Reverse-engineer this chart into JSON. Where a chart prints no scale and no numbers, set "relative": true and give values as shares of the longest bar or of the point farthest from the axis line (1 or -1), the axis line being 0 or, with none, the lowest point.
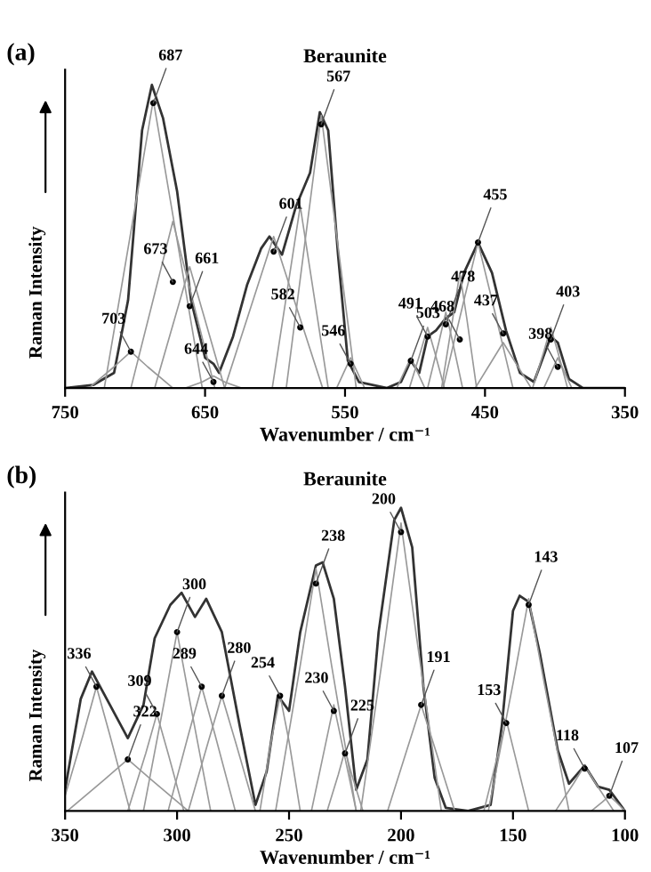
{
  "chart_data": [
    {
      "type": "line",
      "title": "Beraunite",
      "xlabel": "Wavenumber / cm⁻¹",
      "ylabel": "Raman Intensity",
      "relative": true,
      "xlim": [
        750,
        350
      ],
      "xticks": [
        750,
        650,
        550,
        450,
        350
      ],
      "tick_labels": "x",
      "grid": false,
      "legend": false,
      "marker": "none",
      "line_style": "solid",
      "annotations": [
        "(a)",
        {
          "text": "703",
          "x": 703,
          "y": 0.12
        },
        {
          "text": "687",
          "x": 687,
          "y": 0.94
        },
        {
          "text": "673",
          "x": 673,
          "y": 0.35
        },
        {
          "text": "661",
          "x": 661,
          "y": 0.27
        },
        {
          "text": "644",
          "x": 644,
          "y": 0.02
        },
        {
          "text": "601",
          "x": 601,
          "y": 0.45
        },
        {
          "text": "582",
          "x": 582,
          "y": 0.2
        },
        {
          "text": "567",
          "x": 567,
          "y": 0.87
        },
        {
          "text": "546",
          "x": 546,
          "y": 0.08
        },
        {
          "text": "503",
          "x": 503,
          "y": 0.09
        },
        {
          "text": "491",
          "x": 491,
          "y": 0.17
        },
        {
          "text": "478",
          "x": 478,
          "y": 0.21
        },
        {
          "text": "468",
          "x": 468,
          "y": 0.16
        },
        {
          "text": "455",
          "x": 455,
          "y": 0.48
        },
        {
          "text": "437",
          "x": 437,
          "y": 0.18
        },
        {
          "text": "403",
          "x": 403,
          "y": 0.16
        },
        {
          "text": "398",
          "x": 398,
          "y": 0.07
        }
      ],
      "series": [
        {
          "color": "#333333",
          "x": [
            750,
            730,
            715,
            705,
            695,
            688,
            680,
            670,
            660,
            650,
            644,
            640,
            630,
            620,
            610,
            604,
            595,
            585,
            575,
            568,
            562,
            555,
            548,
            540,
            520,
            510,
            503,
            497,
            491,
            485,
            478,
            472,
            465,
            455,
            445,
            435,
            425,
            415,
            403,
            398,
            390,
            380,
            350
          ],
          "values": [
            0,
            0.01,
            0.05,
            0.29,
            0.85,
            1.0,
            0.89,
            0.65,
            0.29,
            0.1,
            0.08,
            0.05,
            0.17,
            0.34,
            0.46,
            0.5,
            0.44,
            0.6,
            0.71,
            0.91,
            0.85,
            0.44,
            0.09,
            0.02,
            0,
            0.02,
            0.09,
            0.05,
            0.17,
            0.19,
            0.23,
            0.25,
            0.38,
            0.48,
            0.38,
            0.19,
            0.05,
            0.02,
            0.17,
            0.15,
            0.03,
            0,
            0
          ]
        },
        {
          "color": "#999999",
          "x": [
            673,
            691,
            703,
            715,
            733
          ],
          "values": [
            0,
            0.07,
            0.12,
            0.07,
            0
          ]
        },
        {
          "color": "#999999",
          "x": [
            652,
            673,
            687,
            701,
            722
          ],
          "values": [
            0,
            0.57,
            0.95,
            0.57,
            0
          ]
        },
        {
          "color": "#999999",
          "x": [
            643,
            661,
            673,
            685,
            703
          ],
          "values": [
            0,
            0.33,
            0.55,
            0.33,
            0
          ]
        },
        {
          "color": "#999999",
          "x": [
            636,
            651,
            661,
            671,
            686
          ],
          "values": [
            0,
            0.24,
            0.4,
            0.24,
            0
          ]
        },
        {
          "color": "#999999",
          "x": [
            624,
            636,
            644,
            652,
            664
          ],
          "values": [
            0,
            0.02,
            0.04,
            0.02,
            0
          ]
        },
        {
          "color": "#999999",
          "x": [
            566,
            587,
            601,
            615,
            636
          ],
          "values": [
            0,
            0.3,
            0.5,
            0.3,
            0
          ]
        },
        {
          "color": "#999999",
          "x": [
            562,
            574,
            582,
            590,
            602
          ],
          "values": [
            0,
            0.36,
            0.6,
            0.36,
            0
          ]
        },
        {
          "color": "#999999",
          "x": [
            542,
            557,
            567,
            577,
            592
          ],
          "values": [
            0,
            0.54,
            0.9,
            0.54,
            0
          ]
        },
        {
          "color": "#999999",
          "x": [
            536,
            542,
            546,
            550,
            556
          ],
          "values": [
            0,
            0.06,
            0.1,
            0.06,
            0
          ]
        },
        {
          "color": "#999999",
          "x": [
            493,
            499,
            503,
            507,
            513
          ],
          "values": [
            0,
            0.06,
            0.1,
            0.06,
            0
          ]
        },
        {
          "color": "#999999",
          "x": [
            479,
            486,
            491,
            496,
            504
          ],
          "values": [
            0,
            0.12,
            0.2,
            0.12,
            0
          ]
        },
        {
          "color": "#999999",
          "x": [
            466,
            473,
            478,
            483,
            491
          ],
          "values": [
            0,
            0.15,
            0.25,
            0.15,
            0
          ]
        },
        {
          "color": "#999999",
          "x": [
            456,
            463,
            468,
            473,
            481
          ],
          "values": [
            0,
            0.23,
            0.38,
            0.23,
            0
          ]
        },
        {
          "color": "#999999",
          "x": [
            430,
            445,
            455,
            465,
            480
          ],
          "values": [
            0,
            0.29,
            0.48,
            0.29,
            0
          ]
        },
        {
          "color": "#999999",
          "x": [
            417,
            429,
            437,
            445,
            457
          ],
          "values": [
            0,
            0.09,
            0.15,
            0.09,
            0
          ]
        },
        {
          "color": "#999999",
          "x": [
            391,
            398,
            403,
            408,
            416
          ],
          "values": [
            0,
            0.12,
            0.2,
            0.12,
            0
          ]
        },
        {
          "color": "#999999",
          "x": [
            388,
            394,
            398,
            402,
            408
          ],
          "values": [
            0,
            0.06,
            0.1,
            0.06,
            0
          ]
        }
      ]
    },
    {
      "type": "line",
      "title": "Beraunite",
      "xlabel": "Wavenumber / cm⁻¹",
      "ylabel": "Raman Intensity",
      "relative": true,
      "xlim": [
        350,
        100
      ],
      "xticks": [
        350,
        300,
        250,
        200,
        150,
        100
      ],
      "tick_labels": "x",
      "grid": false,
      "legend": false,
      "marker": "none",
      "line_style": "solid",
      "annotations": [
        "(b)",
        {
          "text": "336",
          "x": 336,
          "y": 0.41
        },
        {
          "text": "322",
          "x": 322,
          "y": 0.17
        },
        {
          "text": "309",
          "x": 309,
          "y": 0.32
        },
        {
          "text": "300",
          "x": 300,
          "y": 0.59
        },
        {
          "text": "289",
          "x": 289,
          "y": 0.41
        },
        {
          "text": "280",
          "x": 280,
          "y": 0.38
        },
        {
          "text": "254",
          "x": 254,
          "y": 0.38
        },
        {
          "text": "238",
          "x": 238,
          "y": 0.75
        },
        {
          "text": "230",
          "x": 230,
          "y": 0.33
        },
        {
          "text": "225",
          "x": 225,
          "y": 0.19
        },
        {
          "text": "200",
          "x": 200,
          "y": 0.92
        },
        {
          "text": "191",
          "x": 191,
          "y": 0.35
        },
        {
          "text": "153",
          "x": 153,
          "y": 0.29
        },
        {
          "text": "143",
          "x": 143,
          "y": 0.68
        },
        {
          "text": "118",
          "x": 118,
          "y": 0.14
        },
        {
          "text": "107",
          "x": 107,
          "y": 0.05
        }
      ],
      "series": [
        {
          "color": "#333333",
          "x": [
            350,
            343,
            338,
            330,
            322,
            315,
            310,
            303,
            298,
            292,
            287,
            280,
            272,
            265,
            260,
            255,
            250,
            245,
            238,
            235,
            230,
            225,
            220,
            215,
            210,
            203,
            200,
            195,
            190,
            185,
            180,
            170,
            160,
            155,
            150,
            147,
            143,
            138,
            130,
            125,
            118,
            112,
            107,
            100
          ],
          "values": [
            0.07,
            0.37,
            0.46,
            0.35,
            0.24,
            0.35,
            0.57,
            0.68,
            0.72,
            0.64,
            0.7,
            0.59,
            0.28,
            0.02,
            0.13,
            0.38,
            0.33,
            0.59,
            0.81,
            0.82,
            0.7,
            0.41,
            0.07,
            0.17,
            0.59,
            0.96,
            1.0,
            0.87,
            0.41,
            0.11,
            0.01,
            0,
            0.02,
            0.28,
            0.66,
            0.71,
            0.69,
            0.52,
            0.2,
            0.09,
            0.15,
            0.08,
            0.07,
            0
          ]
        },
        {
          "color": "#999999",
          "x": [
            321,
            330,
            336,
            342,
            350
          ],
          "values": [
            0,
            0.25,
            0.41,
            0.25,
            0.05
          ]
        },
        {
          "color": "#999999",
          "x": [
            295,
            311,
            322,
            333,
            349
          ],
          "values": [
            0,
            0.1,
            0.17,
            0.1,
            0
          ]
        },
        {
          "color": "#999999",
          "x": [
            297,
            304,
            309,
            314,
            322
          ],
          "values": [
            0,
            0.19,
            0.32,
            0.19,
            0
          ]
        },
        {
          "color": "#999999",
          "x": [
            285,
            294,
            300,
            306,
            315
          ],
          "values": [
            0,
            0.35,
            0.59,
            0.35,
            0
          ]
        },
        {
          "color": "#999999",
          "x": [
            274,
            283,
            289,
            295,
            304
          ],
          "values": [
            0,
            0.25,
            0.41,
            0.25,
            0
          ]
        },
        {
          "color": "#999999",
          "x": [
            265,
            274,
            280,
            286,
            295
          ],
          "values": [
            0,
            0.23,
            0.38,
            0.23,
            0
          ]
        },
        {
          "color": "#999999",
          "x": [
            245,
            250,
            254,
            258,
            263
          ],
          "values": [
            0,
            0.23,
            0.38,
            0.23,
            0
          ]
        },
        {
          "color": "#999999",
          "x": [
            220,
            231,
            238,
            245,
            256
          ],
          "values": [
            0,
            0.48,
            0.8,
            0.48,
            0
          ]
        },
        {
          "color": "#999999",
          "x": [
            220,
            226,
            230,
            234,
            240
          ],
          "values": [
            0,
            0.21,
            0.35,
            0.21,
            0
          ]
        },
        {
          "color": "#999999",
          "x": [
            217,
            222,
            225,
            228,
            233
          ],
          "values": [
            0,
            0.12,
            0.2,
            0.12,
            0
          ]
        },
        {
          "color": "#999999",
          "x": [
            182,
            193,
            200,
            207,
            218
          ],
          "values": [
            0,
            0.57,
            0.95,
            0.57,
            0
          ]
        },
        {
          "color": "#999999",
          "x": [
            176,
            185,
            191,
            197,
            206
          ],
          "values": [
            0,
            0.21,
            0.35,
            0.21,
            0
          ]
        },
        {
          "color": "#999999",
          "x": [
            143,
            149,
            153,
            157,
            163
          ],
          "values": [
            0,
            0.18,
            0.3,
            0.18,
            0
          ]
        },
        {
          "color": "#999999",
          "x": [
            125,
            136,
            143,
            150,
            161
          ],
          "values": [
            0,
            0.42,
            0.7,
            0.42,
            0
          ]
        },
        {
          "color": "#999999",
          "x": [
            105,
            113,
            118,
            123,
            131
          ],
          "values": [
            0,
            0.09,
            0.15,
            0.09,
            0
          ]
        },
        {
          "color": "#999999",
          "x": [
            100,
            104,
            107,
            110,
            115
          ],
          "values": [
            0,
            0.03,
            0.05,
            0.03,
            0
          ]
        }
      ]
    }
  ]
}
